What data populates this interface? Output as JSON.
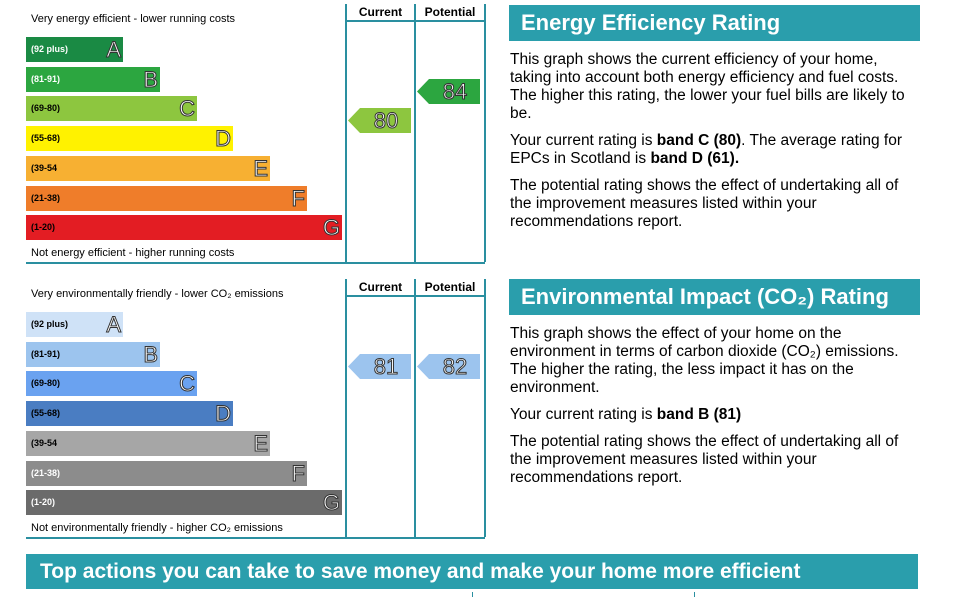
{
  "energy": {
    "top_note": "Very energy efficient - lower running costs",
    "bottom_note": "Not energy efficient - higher running costs",
    "col_current": "Current",
    "col_potential": "Potential",
    "bands": [
      {
        "range": "(92 plus)",
        "letter": "A",
        "color": "#1a8a44",
        "light": true
      },
      {
        "range": "(81-91)",
        "letter": "B",
        "color": "#2ca640",
        "light": true
      },
      {
        "range": "(69-80)",
        "letter": "C",
        "color": "#8dc63f",
        "light": false
      },
      {
        "range": "(55-68)",
        "letter": "D",
        "color": "#fff200",
        "light": false
      },
      {
        "range": "(39-54",
        "letter": "E",
        "color": "#f7b032",
        "light": false
      },
      {
        "range": "(21-38)",
        "letter": "F",
        "color": "#ef7d2a",
        "light": false
      },
      {
        "range": "(1-20)",
        "letter": "G",
        "color": "#e31d23",
        "light": false
      }
    ],
    "current": {
      "value": "80",
      "band": 2,
      "color": "#8dc63f"
    },
    "potential": {
      "value": "84",
      "band": 1,
      "color": "#2ca640"
    }
  },
  "environment": {
    "top_note": "Very environmentally friendly - lower CO₂ emissions",
    "bottom_note": "Not environmentally friendly - higher CO₂ emissions",
    "col_current": "Current",
    "col_potential": "Potential",
    "bands": [
      {
        "range": "(92 plus)",
        "letter": "A",
        "color": "#cfe2f7",
        "light": false
      },
      {
        "range": "(81-91)",
        "letter": "B",
        "color": "#9cc4ee",
        "light": false
      },
      {
        "range": "(69-80)",
        "letter": "C",
        "color": "#6aa2f0",
        "light": false
      },
      {
        "range": "(55-68)",
        "letter": "D",
        "color": "#4a7dc2",
        "light": false
      },
      {
        "range": "(39-54",
        "letter": "E",
        "color": "#a6a6a6",
        "light": false
      },
      {
        "range": "(21-38)",
        "letter": "F",
        "color": "#8c8c8c",
        "light": true
      },
      {
        "range": "(1-20)",
        "letter": "G",
        "color": "#6b6b6b",
        "light": true
      }
    ],
    "current": {
      "value": "81",
      "band": 1,
      "color": "#9cc4ee"
    },
    "potential": {
      "value": "82",
      "band": 1,
      "color": "#9cc4ee"
    }
  },
  "energy_panel": {
    "title": "Energy Efficiency Rating",
    "p1": "This graph shows the current efficiency of your home, taking into account both energy efficiency and fuel costs. The higher this rating, the lower your fuel bills are likely to be.",
    "p2_pre": "Your current rating is ",
    "p2_bold1": "band C (80)",
    "p2_mid": ". The average rating for EPCs in Scotland is ",
    "p2_bold2": "band D (61).",
    "p3": "The potential rating shows the effect of undertaking all of the improvement measures listed within your recommendations report."
  },
  "env_panel": {
    "title": "Environmental Impact (CO₂) Rating",
    "p1": "This graph shows the effect of your home on the environment in terms of carbon dioxide (CO₂) emissions. The higher the rating, the less impact it has on the environment.",
    "p2_pre": "Your current rating is ",
    "p2_bold": "band B (81)",
    "p3": "The potential rating shows the effect of undertaking all of the improvement measures listed within your recommendations report."
  },
  "actions_title": "Top actions you can take to save money and make your home more efficient"
}
